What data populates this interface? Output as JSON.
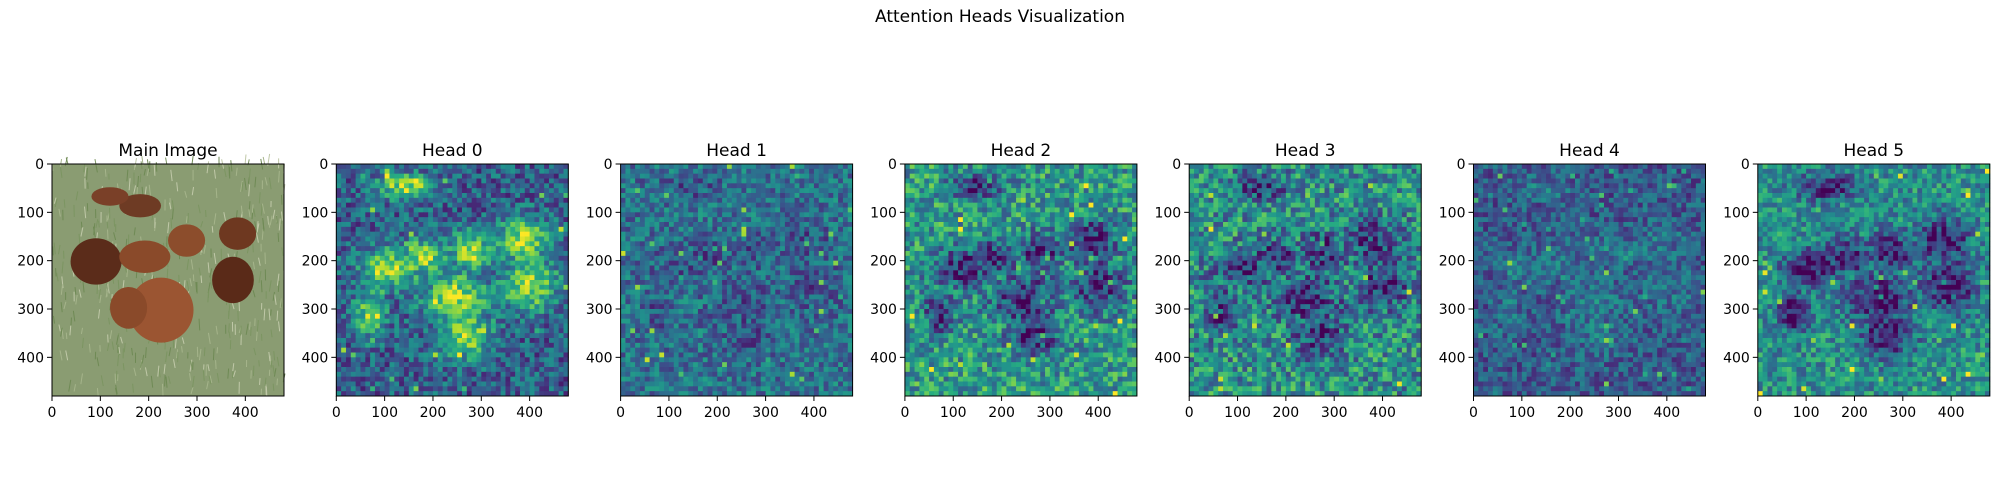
{
  "figure": {
    "suptitle": "Attention Heads Visualization"
  },
  "chart_data": [
    {
      "type": "image",
      "title": "Main Image",
      "content": "photo",
      "xlim": [
        0,
        480
      ],
      "ylim": [
        480,
        0
      ],
      "xticks": [
        0,
        100,
        200,
        300,
        400
      ],
      "yticks": [
        0,
        100,
        200,
        300,
        400
      ]
    },
    {
      "type": "heatmap",
      "title": "Head 0",
      "colormap": "viridis",
      "grid": [
        48,
        48
      ],
      "xlim": [
        0,
        480
      ],
      "ylim": [
        480,
        0
      ],
      "xticks": [
        0,
        100,
        200,
        300,
        400
      ],
      "yticks": [
        0,
        100,
        200,
        300,
        400
      ]
    },
    {
      "type": "heatmap",
      "title": "Head 1",
      "colormap": "viridis",
      "grid": [
        48,
        48
      ],
      "xlim": [
        0,
        480
      ],
      "ylim": [
        480,
        0
      ],
      "xticks": [
        0,
        100,
        200,
        300,
        400
      ],
      "yticks": [
        0,
        100,
        200,
        300,
        400
      ]
    },
    {
      "type": "heatmap",
      "title": "Head 2",
      "colormap": "viridis",
      "grid": [
        48,
        48
      ],
      "xlim": [
        0,
        480
      ],
      "ylim": [
        480,
        0
      ],
      "xticks": [
        0,
        100,
        200,
        300,
        400
      ],
      "yticks": [
        0,
        100,
        200,
        300,
        400
      ]
    },
    {
      "type": "heatmap",
      "title": "Head 3",
      "colormap": "viridis",
      "grid": [
        48,
        48
      ],
      "xlim": [
        0,
        480
      ],
      "ylim": [
        480,
        0
      ],
      "xticks": [
        0,
        100,
        200,
        300,
        400
      ],
      "yticks": [
        0,
        100,
        200,
        300,
        400
      ]
    },
    {
      "type": "heatmap",
      "title": "Head 4",
      "colormap": "viridis",
      "grid": [
        48,
        48
      ],
      "xlim": [
        0,
        480
      ],
      "ylim": [
        480,
        0
      ],
      "xticks": [
        0,
        100,
        200,
        300,
        400
      ],
      "yticks": [
        0,
        100,
        200,
        300,
        400
      ]
    },
    {
      "type": "heatmap",
      "title": "Head 5",
      "colormap": "viridis",
      "grid": [
        48,
        48
      ],
      "xlim": [
        0,
        480
      ],
      "ylim": [
        480,
        0
      ],
      "xticks": [
        0,
        100,
        200,
        300,
        400
      ],
      "yticks": [
        0,
        100,
        200,
        300,
        400
      ]
    }
  ]
}
